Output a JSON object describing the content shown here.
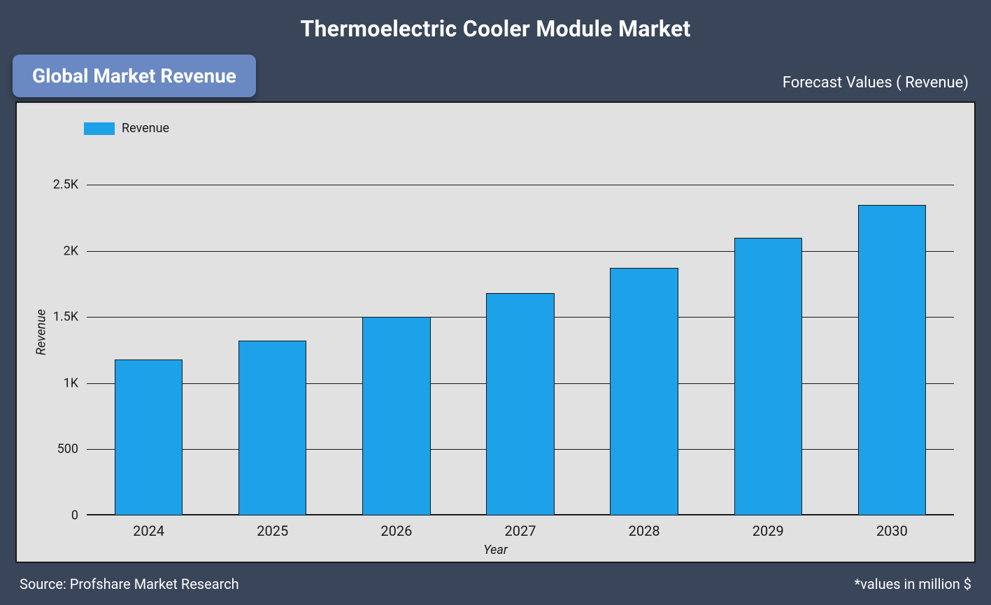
{
  "title": "Thermoelectric Cooler Module Market",
  "badge": "Global Market Revenue",
  "subtitle": "Forecast Values ( Revenue)",
  "legend": {
    "label": "Revenue",
    "swatch_color": "#1da1e8"
  },
  "chart": {
    "type": "bar",
    "categories": [
      "2024",
      "2025",
      "2026",
      "2027",
      "2028",
      "2029",
      "2030"
    ],
    "values": [
      1180,
      1320,
      1500,
      1680,
      1870,
      2100,
      2350
    ],
    "bar_color": "#1da1e8",
    "bar_border_color": "#1a1a1a",
    "bar_width_ratio": 0.55,
    "ylabel": "Revenue",
    "xlabel": "Year",
    "ylim": [
      0,
      2750
    ],
    "yticks": [
      {
        "v": 0,
        "label": "0"
      },
      {
        "v": 500,
        "label": "500"
      },
      {
        "v": 1000,
        "label": "1K"
      },
      {
        "v": 1500,
        "label": "1.5K"
      },
      {
        "v": 2000,
        "label": "2K"
      },
      {
        "v": 2500,
        "label": "2.5K"
      }
    ],
    "background_color": "#e1e1e1",
    "grid_color": "#1a1a1a",
    "tick_fontsize": 18,
    "label_fontsize": 18,
    "title_fontsize": 32
  },
  "footer": {
    "left": "Source: Profshare Market Research",
    "right": "*values in million $"
  },
  "colors": {
    "page_bg": "#394559",
    "badge_bg": "#6a88c2",
    "text_light": "#ffffff",
    "text_dark": "#1a1a1a"
  }
}
